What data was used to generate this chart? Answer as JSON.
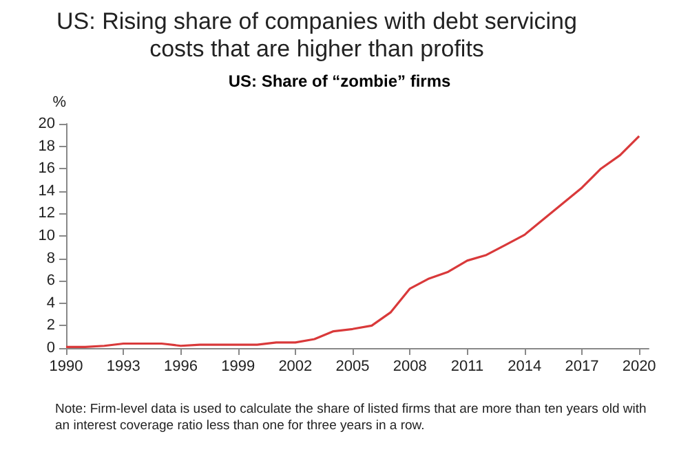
{
  "chart_data": {
    "type": "line",
    "title": "US: Rising share of companies with debt servicing costs that are higher than profits",
    "subtitle": "US: Share of “zombie” firms",
    "ylabel": "%",
    "annotations": [
      "Note: Firm-level data is used to calculate the share of listed firms that are more than ten years old with an interest coverage ratio less than one for three years in a row."
    ],
    "x": [
      1990,
      1991,
      1992,
      1993,
      1994,
      1995,
      1996,
      1997,
      1998,
      1999,
      2000,
      2001,
      2002,
      2003,
      2004,
      2005,
      2006,
      2007,
      2008,
      2009,
      2010,
      2011,
      2012,
      2013,
      2014,
      2015,
      2016,
      2017,
      2018,
      2019,
      2020
    ],
    "series": [
      {
        "color": "#d9393a",
        "values": [
          0.1,
          0.1,
          0.2,
          0.4,
          0.4,
          0.4,
          0.2,
          0.3,
          0.3,
          0.3,
          0.3,
          0.5,
          0.5,
          0.8,
          1.5,
          1.7,
          2.0,
          3.2,
          5.3,
          6.2,
          6.8,
          7.8,
          8.3,
          9.2,
          10.1,
          11.5,
          12.9,
          14.3,
          16.0,
          17.2,
          18.9
        ]
      }
    ],
    "xlim": [
      1990,
      2020.5
    ],
    "xticks": [
      1990,
      1993,
      1996,
      1999,
      2002,
      2005,
      2008,
      2011,
      2014,
      2017,
      2020
    ],
    "ylim": [
      0,
      20
    ],
    "yticks": [
      0,
      2,
      4,
      6,
      8,
      10,
      12,
      14,
      16,
      18,
      20
    ],
    "grid": false,
    "marker": "none",
    "line_style": "solid"
  }
}
